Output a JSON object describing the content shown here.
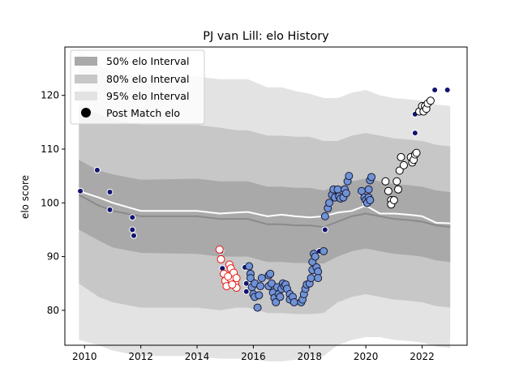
{
  "chart_data": {
    "type": "scatter",
    "title": "PJ van Lill: elo History",
    "xlabel": "",
    "ylabel": "elo score",
    "xlim": [
      2009.3,
      2023.6
    ],
    "ylim": [
      73.5,
      129
    ],
    "xticks": [
      2010,
      2012,
      2014,
      2016,
      2018,
      2020,
      2022
    ],
    "yticks": [
      80,
      90,
      100,
      110,
      120
    ],
    "legend": {
      "placement": "top-left",
      "entries": [
        "50% elo Interval",
        "80% elo Interval",
        "95% elo Interval",
        "Post Match elo"
      ]
    },
    "colors": {
      "band50": "#a9a9a9",
      "band80": "#c7c7c7",
      "band95": "#e3e3e3",
      "mean_line": "#8a8a8a",
      "white_line": "#ffffff",
      "dot_navy": "#131370",
      "dot_blue": "#6f93d4",
      "dot_white": "#ffffff",
      "dot_red_edge": "#e8140c"
    },
    "bands": {
      "x": [
        2009.8,
        2010.5,
        2011.0,
        2012.0,
        2014.0,
        2014.8,
        2015.4,
        2015.8,
        2016.5,
        2017.0,
        2017.5,
        2018.0,
        2018.5,
        2019.0,
        2019.5,
        2020.0,
        2020.5,
        2021.0,
        2021.5,
        2022.0,
        2022.5,
        2023.0
      ],
      "mean": [
        101.5,
        99.5,
        98.5,
        97.5,
        97.5,
        97.0,
        97.0,
        97.0,
        96.0,
        96.0,
        95.8,
        95.8,
        95.5,
        96.5,
        97.5,
        98.0,
        97.5,
        97.0,
        96.8,
        96.5,
        95.8,
        95.5
      ],
      "p50": [
        6.5,
        6.5,
        6.8,
        6.8,
        7.0,
        7.0,
        7.0,
        7.0,
        7.0,
        7.0,
        7.0,
        7.0,
        6.8,
        6.5,
        6.5,
        6.5,
        6.5,
        6.5,
        6.5,
        6.5,
        6.5,
        6.5
      ],
      "p80": [
        16.5,
        17.0,
        17.0,
        17.0,
        17.0,
        17.0,
        16.5,
        16.5,
        16.5,
        16.5,
        16.5,
        16.5,
        16.0,
        15.0,
        15.0,
        15.0,
        15.0,
        15.0,
        15.0,
        15.0,
        15.0,
        15.0
      ],
      "p95": [
        27.0,
        26.0,
        26.0,
        26.0,
        26.0,
        26.0,
        26.0,
        26.0,
        25.5,
        25.5,
        25.0,
        24.5,
        24.0,
        23.0,
        23.0,
        23.0,
        22.5,
        22.5,
        22.5,
        22.5,
        22.5,
        22.5
      ]
    },
    "white_line": {
      "x": [
        2009.8,
        2010.5,
        2011.0,
        2012.0,
        2014.0,
        2014.8,
        2015.4,
        2015.8,
        2016.5,
        2017.0,
        2017.5,
        2018.0,
        2018.5,
        2019.0,
        2019.5,
        2020.0,
        2020.5,
        2021.0,
        2021.5,
        2022.0,
        2022.5,
        2023.0
      ],
      "y": [
        102.2,
        101.0,
        100.0,
        98.5,
        98.5,
        98.0,
        98.2,
        98.3,
        97.5,
        97.8,
        97.5,
        97.3,
        97.5,
        98.2,
        98.5,
        99.5,
        98.0,
        98.0,
        97.8,
        97.5,
        96.3,
        96.2
      ]
    },
    "series": [
      {
        "style": "navy",
        "points": [
          [
            2009.85,
            102.2
          ],
          [
            2010.45,
            106.1
          ],
          [
            2010.9,
            102.0
          ],
          [
            2010.9,
            98.7
          ],
          [
            2011.7,
            97.3
          ],
          [
            2011.7,
            95.0
          ],
          [
            2011.75,
            93.9
          ],
          [
            2014.85,
            91.0
          ],
          [
            2014.9,
            87.8
          ],
          [
            2015.7,
            88.0
          ],
          [
            2015.75,
            83.5
          ],
          [
            2015.75,
            85.0
          ],
          [
            2018.35,
            91.0
          ],
          [
            2018.55,
            97.4
          ],
          [
            2018.55,
            95.0
          ],
          [
            2018.7,
            99.5
          ],
          [
            2019.85,
            101.8
          ],
          [
            2020.0,
            99.8
          ],
          [
            2021.75,
            116.5
          ],
          [
            2021.75,
            113.0
          ],
          [
            2022.45,
            121.0
          ],
          [
            2022.9,
            121.0
          ]
        ]
      },
      {
        "style": "red",
        "points": [
          [
            2014.8,
            91.3
          ],
          [
            2014.85,
            89.5
          ],
          [
            2014.95,
            86.8
          ],
          [
            2015.0,
            85.5
          ],
          [
            2015.05,
            84.5
          ],
          [
            2015.15,
            88.5
          ],
          [
            2015.2,
            87.8
          ],
          [
            2015.2,
            85.8
          ],
          [
            2015.3,
            87.0
          ],
          [
            2015.35,
            85.0
          ],
          [
            2015.4,
            86.0
          ],
          [
            2015.4,
            84.2
          ],
          [
            2015.1,
            86.3
          ],
          [
            2015.25,
            84.8
          ]
        ]
      },
      {
        "style": "blue",
        "points": [
          [
            2015.85,
            88.2
          ],
          [
            2015.9,
            86.8
          ],
          [
            2015.9,
            86.0
          ],
          [
            2015.95,
            84.3
          ],
          [
            2016.0,
            83.0
          ],
          [
            2016.05,
            82.5
          ],
          [
            2016.05,
            85.0
          ],
          [
            2016.15,
            80.5
          ],
          [
            2016.2,
            82.8
          ],
          [
            2016.25,
            84.5
          ],
          [
            2016.3,
            86.0
          ],
          [
            2016.55,
            84.5
          ],
          [
            2016.55,
            86.5
          ],
          [
            2016.6,
            86.8
          ],
          [
            2016.65,
            85.0
          ],
          [
            2016.7,
            83.3
          ],
          [
            2016.75,
            82.3
          ],
          [
            2016.8,
            81.5
          ],
          [
            2016.85,
            84.3
          ],
          [
            2016.9,
            83.0
          ],
          [
            2016.95,
            82.5
          ],
          [
            2017.0,
            84.0
          ],
          [
            2017.05,
            85.0
          ],
          [
            2017.1,
            84.5
          ],
          [
            2017.15,
            84.8
          ],
          [
            2017.2,
            84.0
          ],
          [
            2017.3,
            83.0
          ],
          [
            2017.3,
            82.0
          ],
          [
            2017.4,
            82.5
          ],
          [
            2017.45,
            81.5
          ],
          [
            2017.7,
            81.5
          ],
          [
            2017.75,
            82.0
          ],
          [
            2017.8,
            83.0
          ],
          [
            2017.85,
            84.0
          ],
          [
            2017.9,
            84.8
          ],
          [
            2018.0,
            85.0
          ],
          [
            2018.05,
            86.0
          ],
          [
            2018.1,
            87.5
          ],
          [
            2018.1,
            89.0
          ],
          [
            2018.15,
            90.5
          ],
          [
            2018.2,
            90.0
          ],
          [
            2018.25,
            88.0
          ],
          [
            2018.3,
            87.2
          ],
          [
            2018.3,
            86.0
          ],
          [
            2018.55,
            97.5
          ],
          [
            2018.65,
            99.0
          ],
          [
            2018.7,
            100.0
          ],
          [
            2018.8,
            101.5
          ],
          [
            2018.85,
            102.5
          ],
          [
            2018.9,
            101.0
          ],
          [
            2019.0,
            102.5
          ],
          [
            2019.05,
            101.2
          ],
          [
            2019.1,
            100.8
          ],
          [
            2019.2,
            101.0
          ],
          [
            2019.25,
            102.5
          ],
          [
            2019.3,
            101.8
          ],
          [
            2019.35,
            104.0
          ],
          [
            2019.4,
            105.0
          ],
          [
            2019.85,
            102.2
          ],
          [
            2019.95,
            101.0
          ],
          [
            2020.0,
            100.5
          ],
          [
            2020.05,
            100.0
          ],
          [
            2020.1,
            101.0
          ],
          [
            2020.15,
            100.5
          ],
          [
            2020.1,
            102.5
          ],
          [
            2020.15,
            104.2
          ],
          [
            2020.2,
            104.8
          ],
          [
            2018.5,
            91.0
          ]
        ]
      },
      {
        "style": "white",
        "points": [
          [
            2020.7,
            104.0
          ],
          [
            2020.8,
            102.2
          ],
          [
            2020.9,
            100.5
          ],
          [
            2020.9,
            99.7
          ],
          [
            2021.0,
            100.5
          ],
          [
            2021.1,
            104.0
          ],
          [
            2021.15,
            102.5
          ],
          [
            2021.2,
            106.0
          ],
          [
            2021.25,
            108.5
          ],
          [
            2021.35,
            107.0
          ],
          [
            2021.6,
            108.5
          ],
          [
            2021.65,
            107.5
          ],
          [
            2021.7,
            108.0
          ],
          [
            2021.75,
            109.0
          ],
          [
            2021.8,
            109.3
          ],
          [
            2021.9,
            117.0
          ],
          [
            2022.0,
            118.0
          ],
          [
            2022.05,
            117.0
          ],
          [
            2022.1,
            118.0
          ],
          [
            2022.15,
            117.5
          ],
          [
            2022.2,
            118.5
          ],
          [
            2022.3,
            119.0
          ]
        ]
      }
    ]
  }
}
